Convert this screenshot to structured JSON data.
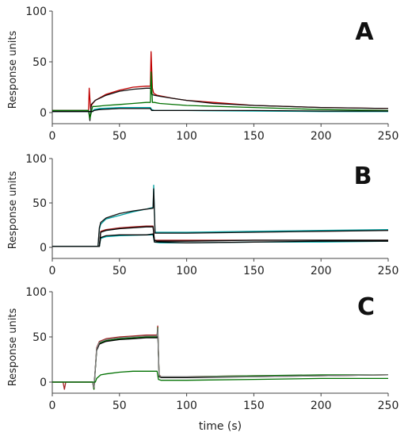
{
  "chart_data": [
    {
      "type": "line",
      "panel": "A",
      "title": "",
      "xlabel": "",
      "ylabel": "Response units",
      "xlim": [
        0,
        250
      ],
      "ylim": [
        0,
        100
      ],
      "xticks": [
        0,
        50,
        100,
        150,
        200,
        250
      ],
      "yticks": [
        0,
        50,
        100
      ],
      "grid": false,
      "series": [
        {
          "color": "#c00000",
          "x": [
            0,
            27,
            27.5,
            28.5,
            29.5,
            32,
            40,
            50,
            60,
            70,
            73,
            73.5,
            74.5,
            75.5,
            78,
            90,
            100,
            120,
            150,
            200,
            250
          ],
          "y": [
            2,
            2,
            24,
            4,
            8,
            12,
            18,
            22,
            25,
            26,
            26,
            60,
            24,
            19,
            17,
            14,
            12,
            10,
            7,
            5,
            4
          ]
        },
        {
          "color": "#111111",
          "x": [
            0,
            27,
            28,
            29,
            32,
            40,
            50,
            60,
            70,
            73,
            74,
            76,
            80,
            90,
            100,
            120,
            150,
            200,
            250
          ],
          "y": [
            2,
            2,
            -8,
            8,
            12,
            17,
            21,
            23,
            24,
            24,
            18,
            17,
            16,
            14,
            12,
            9,
            7,
            5,
            4
          ]
        },
        {
          "color": "#007000",
          "x": [
            0,
            27,
            28,
            30,
            32,
            40,
            50,
            60,
            70,
            73,
            73.5,
            74.5,
            76,
            80,
            100,
            150,
            200,
            250
          ],
          "y": [
            2,
            2,
            -6,
            6,
            6,
            7,
            8,
            9,
            10,
            10,
            40,
            10,
            10,
            9,
            7,
            5,
            3,
            2
          ]
        },
        {
          "color": "#00b0b0",
          "x": [
            0,
            30,
            31,
            35,
            50,
            73,
            74,
            76,
            100,
            150,
            200,
            250
          ],
          "y": [
            1,
            1,
            3,
            4,
            5,
            5,
            3,
            2,
            2,
            1.5,
            1,
            1
          ]
        },
        {
          "color": "#000000",
          "x": [
            0,
            30,
            31,
            35,
            50,
            73,
            74,
            76,
            100,
            150,
            200,
            250
          ],
          "y": [
            1,
            1,
            2,
            3,
            4,
            4,
            2,
            2,
            2,
            2,
            1.5,
            1.5
          ]
        }
      ]
    },
    {
      "type": "line",
      "panel": "B",
      "title": "",
      "xlabel": "",
      "ylabel": "Response units",
      "xlim": [
        0,
        250
      ],
      "ylim": [
        0,
        100
      ],
      "xticks": [
        0,
        50,
        100,
        150,
        200,
        250
      ],
      "yticks": [
        0,
        50,
        100
      ],
      "grid": false,
      "series": [
        {
          "color": "#00a0a0",
          "x": [
            0,
            34,
            35,
            36,
            40,
            50,
            60,
            70,
            75,
            75.5,
            76.5,
            77,
            80,
            100,
            150,
            200,
            250
          ],
          "y": [
            1,
            1,
            20,
            26,
            32,
            36,
            40,
            43,
            45,
            70,
            17,
            17,
            17,
            17,
            18,
            19,
            20
          ]
        },
        {
          "color": "#111111",
          "x": [
            0,
            34,
            35,
            36,
            40,
            50,
            60,
            70,
            75,
            75.5,
            76.5,
            77,
            80,
            100,
            150,
            200,
            250
          ],
          "y": [
            1,
            1,
            22,
            28,
            33,
            38,
            41,
            43,
            44,
            66,
            16,
            16,
            16,
            16,
            17,
            18,
            19
          ]
        },
        {
          "color": "#a02020",
          "x": [
            0,
            35,
            36,
            40,
            50,
            60,
            70,
            75,
            76,
            78,
            80,
            100,
            150,
            200,
            250
          ],
          "y": [
            1,
            1,
            18,
            20,
            22,
            23,
            24,
            24,
            8,
            8,
            8,
            8,
            8,
            8,
            8
          ]
        },
        {
          "color": "#000000",
          "x": [
            0,
            35,
            36,
            40,
            50,
            60,
            70,
            75,
            76,
            78,
            80,
            100,
            150,
            200,
            250
          ],
          "y": [
            1,
            1,
            17,
            19,
            21,
            22,
            23,
            23,
            8,
            7,
            7,
            7,
            8,
            8,
            8
          ]
        },
        {
          "color": "#00b0b0",
          "x": [
            0,
            35,
            36,
            40,
            50,
            70,
            75,
            76,
            80,
            100,
            150,
            200,
            250
          ],
          "y": [
            1,
            1,
            10,
            12,
            13,
            14,
            14,
            6,
            5,
            5,
            6,
            6,
            7
          ]
        },
        {
          "color": "#000000",
          "x": [
            0,
            35,
            36,
            40,
            50,
            70,
            75,
            76,
            80,
            100,
            150,
            200,
            250
          ],
          "y": [
            1,
            1,
            11,
            13,
            14,
            14,
            15,
            6,
            6,
            5,
            6,
            7,
            7
          ]
        }
      ]
    },
    {
      "type": "line",
      "panel": "C",
      "title": "",
      "xlabel": "time (s)",
      "ylabel": "Response units",
      "xlim": [
        0,
        250
      ],
      "ylim": [
        0,
        100
      ],
      "xticks": [
        0,
        50,
        100,
        150,
        200,
        250
      ],
      "yticks": [
        0,
        50,
        100
      ],
      "grid": false,
      "series": [
        {
          "color": "#a02020",
          "x": [
            0,
            8,
            9,
            10,
            30,
            31,
            33,
            35,
            40,
            50,
            60,
            70,
            78,
            78.5,
            79.5,
            81,
            90,
            100,
            150,
            200,
            250
          ],
          "y": [
            0,
            0,
            -8,
            0,
            0,
            -8,
            38,
            45,
            48,
            50,
            51,
            52,
            52,
            62,
            8,
            6,
            6,
            6,
            7,
            7,
            8
          ]
        },
        {
          "color": "#007000",
          "x": [
            0,
            30,
            31,
            33,
            35,
            40,
            50,
            60,
            70,
            78,
            78.5,
            79.5,
            81,
            90,
            100,
            150,
            200,
            250
          ],
          "y": [
            0,
            0,
            -8,
            36,
            43,
            46,
            48,
            49,
            50,
            50,
            60,
            7,
            6,
            6,
            6,
            7,
            8,
            8
          ]
        },
        {
          "color": "#000000",
          "x": [
            0,
            30,
            31,
            33,
            35,
            40,
            50,
            60,
            70,
            78,
            78.5,
            79.5,
            81,
            90,
            100,
            150,
            200,
            250
          ],
          "y": [
            0,
            0,
            -6,
            35,
            42,
            45,
            47,
            48,
            49,
            49,
            58,
            6,
            5,
            5,
            5,
            6,
            7,
            8
          ]
        },
        {
          "color": "#808080",
          "x": [
            0,
            30,
            31,
            33,
            35,
            40,
            50,
            60,
            70,
            78,
            78.5,
            79.5,
            81,
            90,
            100,
            150,
            200,
            250
          ],
          "y": [
            0,
            0,
            -6,
            37,
            44,
            47,
            49,
            50,
            51,
            51,
            59,
            7,
            6,
            6,
            6,
            6,
            7,
            8
          ]
        },
        {
          "color": "#007000",
          "x": [
            0,
            32,
            33,
            36,
            40,
            50,
            60,
            70,
            78,
            79,
            81,
            90,
            100,
            150,
            200,
            250
          ],
          "y": [
            0,
            0,
            4,
            8,
            9,
            11,
            12,
            12,
            12,
            3,
            2,
            2,
            2,
            3,
            4,
            4
          ]
        }
      ]
    }
  ]
}
